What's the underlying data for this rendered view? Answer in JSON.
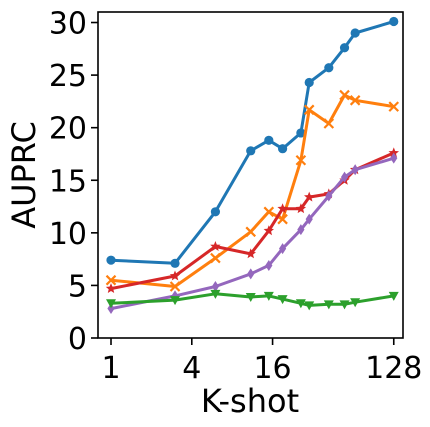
{
  "chart_data": {
    "type": "line",
    "xlabel": "K-shot",
    "ylabel": "AUPRC",
    "x_scale": "log2",
    "x_ticks": [
      1,
      4,
      16,
      128
    ],
    "x_tick_labels": [
      "1",
      "4",
      "16",
      "128"
    ],
    "y_ticks": [
      0,
      5,
      10,
      15,
      20,
      25,
      30
    ],
    "y_tick_labels": [
      "0",
      "5",
      "10",
      "15",
      "20",
      "25",
      "30"
    ],
    "xlim": [
      0.8,
      150
    ],
    "ylim": [
      0,
      31
    ],
    "grid": false,
    "x": [
      1,
      2,
      4,
      8,
      12,
      16,
      24,
      32,
      48,
      64,
      96,
      128
    ],
    "series": [
      {
        "color": "#1f77b4",
        "marker": "circle",
        "x": [
          1,
          3,
          6,
          11,
          15,
          19,
          26,
          30,
          42,
          55,
          66,
          128
        ],
        "values": [
          7.4,
          7.1,
          12.0,
          17.8,
          18.8,
          18.0,
          19.5,
          24.3,
          25.7,
          27.6,
          29.0,
          30.1
        ]
      },
      {
        "color": "#ff7f0e",
        "marker": "x",
        "x": [
          1,
          3,
          6,
          11,
          15,
          19,
          26,
          30,
          42,
          55,
          66,
          128
        ],
        "values": [
          5.5,
          4.9,
          7.6,
          10.1,
          12.0,
          11.3,
          16.9,
          21.7,
          20.4,
          23.1,
          22.6,
          22.0
        ]
      },
      {
        "color": "#d62728",
        "marker": "star",
        "x": [
          1,
          3,
          6,
          11,
          15,
          19,
          26,
          30,
          42,
          55,
          66,
          128
        ],
        "values": [
          4.7,
          5.9,
          8.7,
          8.0,
          10.2,
          12.3,
          12.3,
          13.4,
          13.7,
          15.0,
          16.0,
          17.6
        ]
      },
      {
        "color": "#9467bd",
        "marker": "diamond",
        "x": [
          1,
          3,
          6,
          11,
          15,
          19,
          26,
          30,
          42,
          55,
          66,
          128
        ],
        "values": [
          2.8,
          4.0,
          4.9,
          6.1,
          6.9,
          8.5,
          10.3,
          11.3,
          13.5,
          15.3,
          16.0,
          17.1
        ]
      },
      {
        "color": "#2ca02c",
        "marker": "triangle-down",
        "x": [
          1,
          3,
          6,
          11,
          15,
          19,
          26,
          30,
          42,
          55,
          66,
          128
        ],
        "values": [
          3.3,
          3.6,
          4.2,
          3.9,
          4.0,
          3.7,
          3.3,
          3.1,
          3.2,
          3.2,
          3.4,
          4.0
        ]
      }
    ]
  }
}
